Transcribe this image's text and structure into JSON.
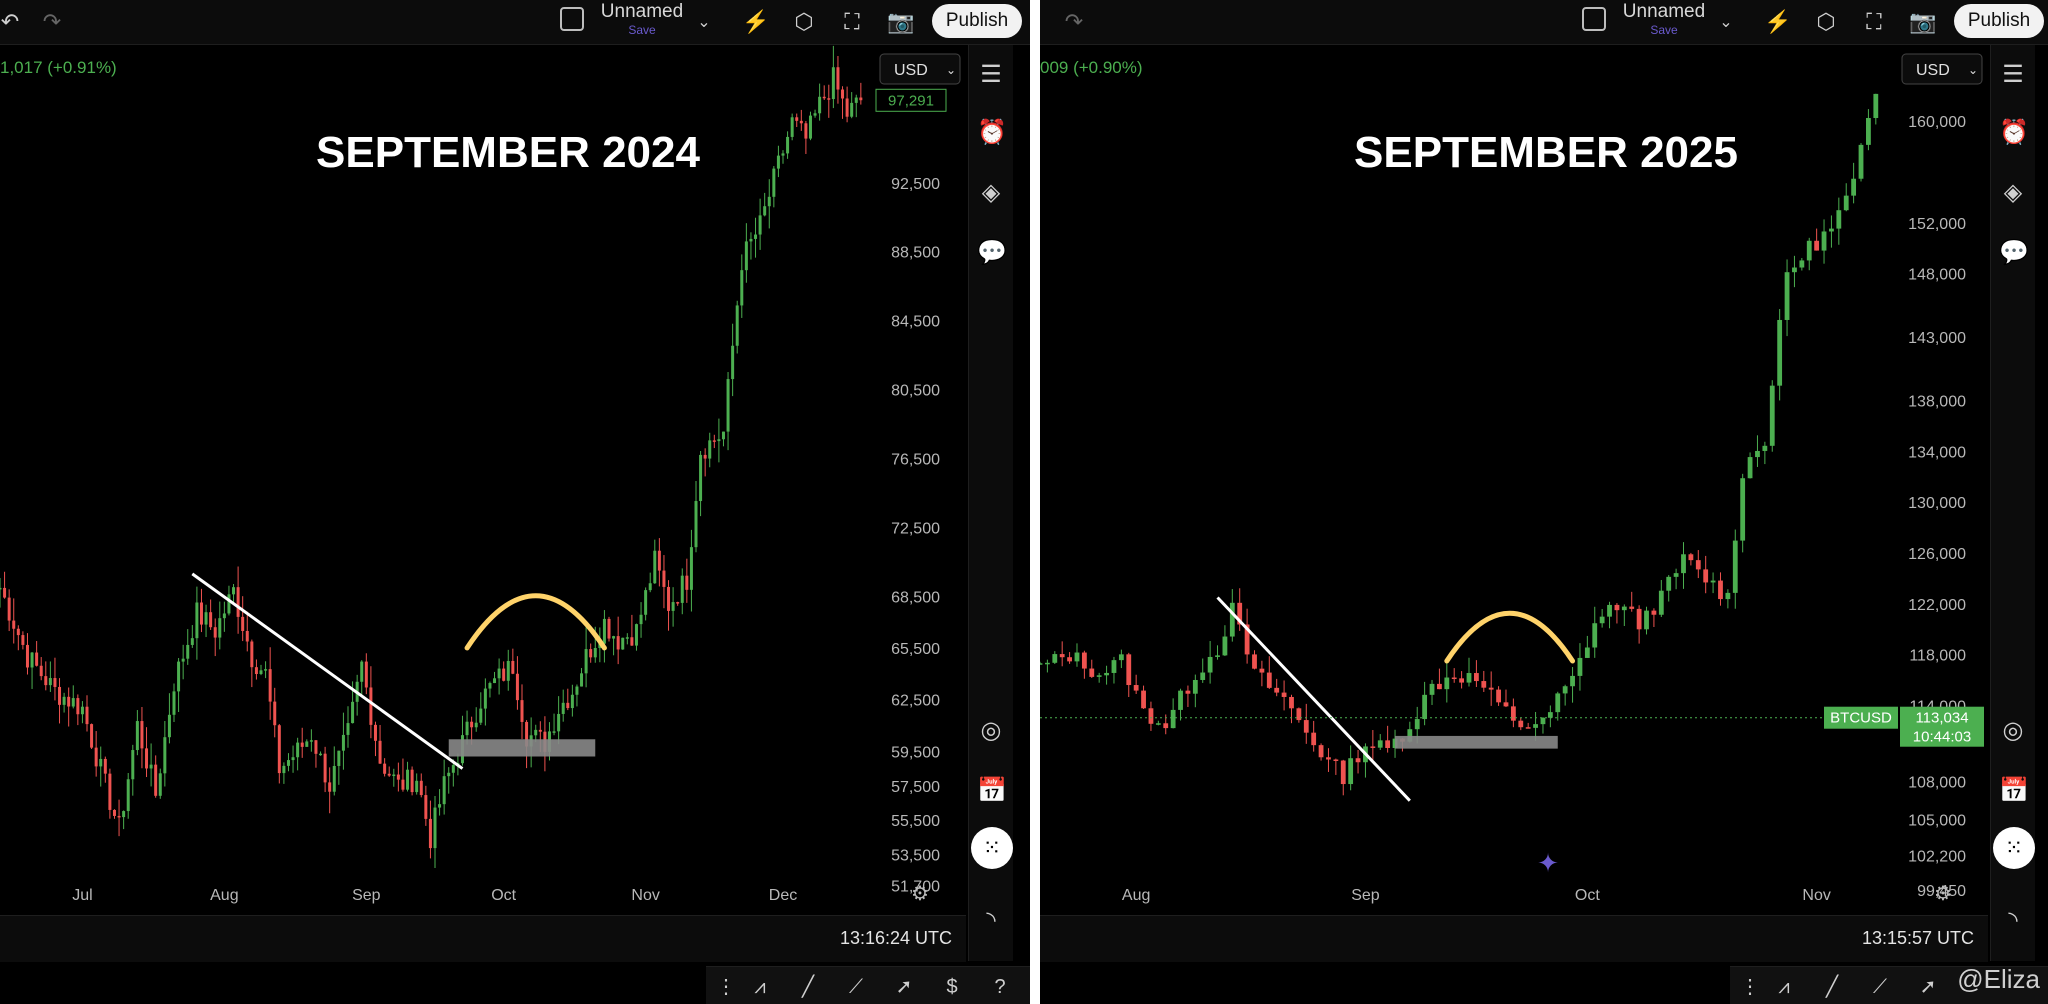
{
  "watermark": "@Eliza",
  "left_panel": {
    "layout_name": "Unnamed",
    "save_label": "Save",
    "publish_label": "Publish",
    "price_change": "1,017 (+0.91%)",
    "currency": "USD",
    "time": "13:16:24 UTC",
    "colors": {
      "up": "#4caf50",
      "down": "#ef5350",
      "line": "#ffffff",
      "support": "#888888",
      "arc": "#ffd36a"
    },
    "chart_data": {
      "type": "candlestick",
      "title": "SEPTEMBER 2024",
      "last_price_label": "97,291",
      "ylim": [
        50000,
        100500
      ],
      "y_ticks": [
        {
          "label": "92,500",
          "value": 92500
        },
        {
          "label": "88,500",
          "value": 88500
        },
        {
          "label": "84,500",
          "value": 84500
        },
        {
          "label": "80,500",
          "value": 80500
        },
        {
          "label": "76,500",
          "value": 76500
        },
        {
          "label": "72,500",
          "value": 72500
        },
        {
          "label": "68,500",
          "value": 68500
        },
        {
          "label": "65,500",
          "value": 65500
        },
        {
          "label": "62,500",
          "value": 62500
        },
        {
          "label": "59,500",
          "value": 59500
        },
        {
          "label": "57,500",
          "value": 57500
        },
        {
          "label": "55,500",
          "value": 55500
        },
        {
          "label": "53,500",
          "value": 53500
        },
        {
          "label": "51,700",
          "value": 51700
        }
      ],
      "x_ticks": [
        {
          "label": "Jul",
          "day": 0
        },
        {
          "label": "Aug",
          "day": 31
        },
        {
          "label": "Sep",
          "day": 62
        },
        {
          "label": "Oct",
          "day": 92
        },
        {
          "label": "Nov",
          "day": 123
        },
        {
          "label": "Dec",
          "day": 153
        }
      ],
      "x_range": [
        -18,
        172
      ],
      "path": [
        [
          -18,
          69000
        ],
        [
          -12,
          65000
        ],
        [
          -6,
          63000
        ],
        [
          0,
          62000
        ],
        [
          5,
          57500
        ],
        [
          8,
          55000
        ],
        [
          12,
          61000
        ],
        [
          16,
          57000
        ],
        [
          20,
          63500
        ],
        [
          25,
          67500
        ],
        [
          29,
          66500
        ],
        [
          33,
          68800
        ],
        [
          37,
          65000
        ],
        [
          40,
          64000
        ],
        [
          43,
          58500
        ],
        [
          47,
          59500
        ],
        [
          50,
          60500
        ],
        [
          54,
          57500
        ],
        [
          58,
          60500
        ],
        [
          61,
          64500
        ],
        [
          65,
          59000
        ],
        [
          69,
          57500
        ],
        [
          73,
          58000
        ],
        [
          76,
          54500
        ],
        [
          79,
          57500
        ],
        [
          83,
          60000
        ],
        [
          87,
          62500
        ],
        [
          90,
          63500
        ],
        [
          94,
          64500
        ],
        [
          97,
          60500
        ],
        [
          101,
          60000
        ],
        [
          104,
          62000
        ],
        [
          107,
          63000
        ],
        [
          110,
          65000
        ],
        [
          114,
          67000
        ],
        [
          117,
          66000
        ],
        [
          121,
          66500
        ],
        [
          125,
          70500
        ],
        [
          128,
          68000
        ],
        [
          132,
          69500
        ],
        [
          135,
          77000
        ],
        [
          140,
          78000
        ],
        [
          144,
          88000
        ],
        [
          148,
          90000
        ],
        [
          152,
          93500
        ],
        [
          155,
          96000
        ],
        [
          158,
          95000
        ],
        [
          161,
          97000
        ],
        [
          164,
          98500
        ],
        [
          167,
          96500
        ],
        [
          170,
          97291
        ]
      ],
      "trendline": [
        [
          24,
          69800
        ],
        [
          83,
          58500
        ]
      ],
      "support_zone": {
        "from_day": 80,
        "to_day": 112,
        "top": 60200,
        "bottom": 59200
      },
      "arc": {
        "from_day": 84,
        "to_day": 114,
        "level": 65500
      }
    }
  },
  "right_panel": {
    "layout_name": "Unnamed",
    "save_label": "Save",
    "publish_label": "Publish",
    "price_change": "009 (+0.90%)",
    "currency": "USD",
    "time": "13:15:57 UTC",
    "colors": {
      "up": "#4caf50",
      "down": "#ef5350",
      "line": "#ffffff",
      "support": "#888888",
      "arc": "#ffd36a",
      "tag": "#4caf50"
    },
    "price_tag": {
      "symbol": "BTCUSD",
      "price": "113,034",
      "countdown": "10:44:03"
    },
    "chart_data": {
      "type": "candlestick",
      "title": "SEPTEMBER 2025",
      "ylim": [
        97500,
        166000
      ],
      "y_ticks": [
        {
          "label": "160,000",
          "value": 160000
        },
        {
          "label": "152,000",
          "value": 152000
        },
        {
          "label": "148,000",
          "value": 148000
        },
        {
          "label": "143,000",
          "value": 143000
        },
        {
          "label": "138,000",
          "value": 138000
        },
        {
          "label": "134,000",
          "value": 134000
        },
        {
          "label": "130,000",
          "value": 130000
        },
        {
          "label": "126,000",
          "value": 126000
        },
        {
          "label": "122,000",
          "value": 122000
        },
        {
          "label": "118,000",
          "value": 118000
        },
        {
          "label": "114,000",
          "value": 114000
        },
        {
          "label": "108,000",
          "value": 108000
        },
        {
          "label": "105,000",
          "value": 105000
        },
        {
          "label": "102,200",
          "value": 102200
        },
        {
          "label": "99,450",
          "value": 99450
        }
      ],
      "x_ticks": [
        {
          "label": "Aug",
          "day": 0
        },
        {
          "label": "Sep",
          "day": 31
        },
        {
          "label": "Oct",
          "day": 61
        },
        {
          "label": "Nov",
          "day": 92
        }
      ],
      "x_range": [
        -13,
        103
      ],
      "path": [
        [
          -13,
          117000
        ],
        [
          -9,
          118000
        ],
        [
          -5,
          116500
        ],
        [
          -2,
          117500
        ],
        [
          1,
          113500
        ],
        [
          4,
          112500
        ],
        [
          8,
          116500
        ],
        [
          11,
          118500
        ],
        [
          13,
          121500
        ],
        [
          16,
          116500
        ],
        [
          20,
          114500
        ],
        [
          23,
          112000
        ],
        [
          26,
          109500
        ],
        [
          28,
          108500
        ],
        [
          31,
          111000
        ],
        [
          34,
          110500
        ],
        [
          37,
          112500
        ],
        [
          40,
          115500
        ],
        [
          43,
          116500
        ],
        [
          46,
          116000
        ],
        [
          49,
          114000
        ],
        [
          52,
          112500
        ],
        [
          55,
          112500
        ],
        [
          57,
          114500
        ],
        [
          59,
          116000
        ],
        [
          62,
          120500
        ],
        [
          65,
          122000
        ],
        [
          68,
          120500
        ],
        [
          71,
          122500
        ],
        [
          74,
          125500
        ],
        [
          77,
          124000
        ],
        [
          80,
          122500
        ],
        [
          82,
          132500
        ],
        [
          85,
          135000
        ],
        [
          88,
          148000
        ],
        [
          91,
          150000
        ],
        [
          94,
          151500
        ],
        [
          97,
          155000
        ],
        [
          100,
          162500
        ]
      ],
      "trendline": [
        [
          11,
          122500
        ],
        [
          37,
          106500
        ]
      ],
      "support_zone": {
        "from_day": 35,
        "to_day": 57,
        "top": 111600,
        "bottom": 110600
      },
      "arc": {
        "from_day": 42,
        "to_day": 59,
        "level": 117500
      }
    }
  }
}
